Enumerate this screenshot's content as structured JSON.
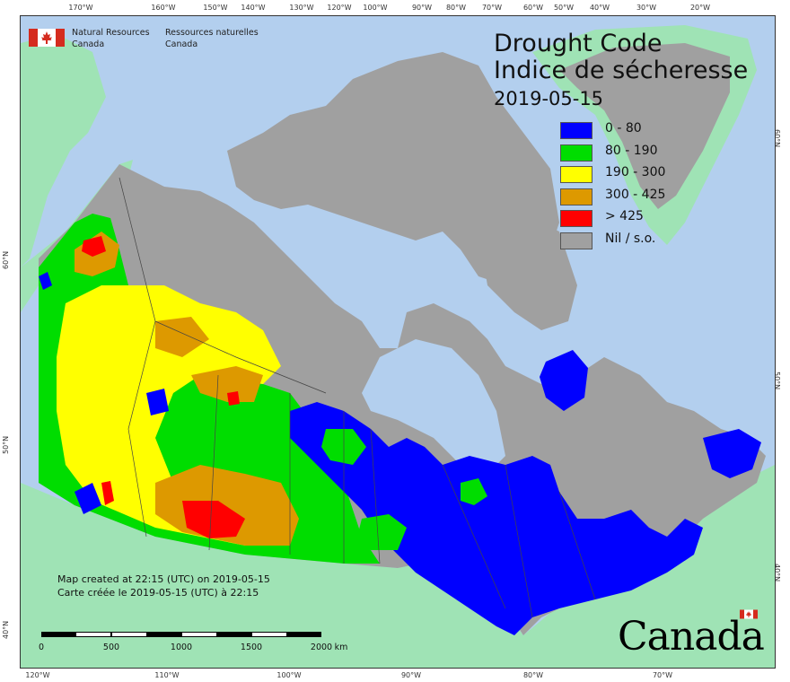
{
  "map": {
    "title_en": "Drought Code",
    "title_fr": "Indice de sécheresse",
    "date": "2019-05-15",
    "agency_en_line1": "Natural Resources",
    "agency_en_line2": "Canada",
    "agency_fr_line1": "Ressources naturelles",
    "agency_fr_line2": "Canada",
    "credit_en": "Map created at 22:15 (UTC) on 2019-05-15",
    "credit_fr": "Carte créée le 2019-05-15 (UTC) à 22:15",
    "wordmark": "Canada"
  },
  "legend": [
    {
      "label": "0 - 80",
      "color": "#0000ff"
    },
    {
      "label": "80 - 190",
      "color": "#00dd00"
    },
    {
      "label": "190 - 300",
      "color": "#ffff00"
    },
    {
      "label": "300 - 425",
      "color": "#dd9900"
    },
    {
      "label": "> 425",
      "color": "#ff0000"
    },
    {
      "label": "Nil / s.o.",
      "color": "#a0a0a0"
    }
  ],
  "ticks": {
    "top": [
      "170°W",
      "160°W",
      "150°W",
      "140°W",
      "130°W",
      "120°W",
      "100°W",
      "90°W",
      "80°W",
      "70°W",
      "60°W",
      "50°W",
      "40°W",
      "30°W",
      "20°W"
    ],
    "bottom": [
      "120°W",
      "110°W",
      "100°W",
      "90°W",
      "80°W",
      "70°W"
    ],
    "left": [
      "60°N",
      "50°N",
      "40°N"
    ],
    "right": [
      "60°N",
      "50°N",
      "40°N"
    ]
  },
  "scalebar": {
    "labels": [
      "0",
      "500",
      "1000",
      "1500",
      "2000"
    ],
    "unit": "km"
  },
  "colors": {
    "water": "#b3cfee",
    "foreign_land": "#9fe3b5",
    "nil": "#a0a0a0",
    "flag_red": "#d52b1e"
  }
}
